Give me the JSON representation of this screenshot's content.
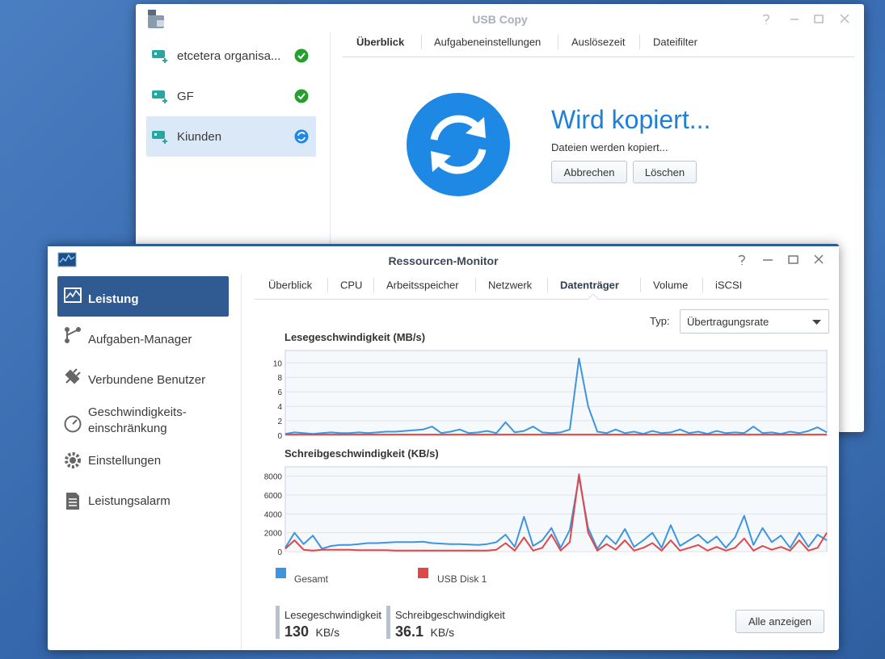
{
  "usb_copy": {
    "title": "USB Copy",
    "tasks": [
      "etcetera organisa...",
      "GF",
      "Kiunden"
    ],
    "tabs": [
      "Überblick",
      "Aufgabeneinstellungen",
      "Auslösezeit",
      "Dateifilter"
    ],
    "status_title": "Wird kopiert...",
    "status_text": "Dateien werden kopiert...",
    "buttons": [
      "Abbrechen",
      "Löschen"
    ]
  },
  "resource_monitor": {
    "title": "Ressourcen-Monitor",
    "sidebar": [
      "Leistung",
      "Aufgaben-Manager",
      "Verbundene Benutzer",
      "Geschwindigkeits-",
      "einschränkung",
      "Einstellungen",
      "Leistungsalarm"
    ],
    "tabs": [
      "Überblick",
      "CPU",
      "Arbeitsspeicher",
      "Netzwerk",
      "Datenträger",
      "Volume",
      "iSCSI"
    ],
    "type_label": "Typ:",
    "type_value": "Übertragungsrate",
    "legend": [
      {
        "name": "Gesamt",
        "color": "#3d95e0"
      },
      {
        "name": "USB Disk 1",
        "color": "#e04848"
      }
    ],
    "charts": [
      {
        "type": "line",
        "title": "Lesegeschwindigkeit (MB/s)",
        "ylim": [
          0,
          11.7
        ],
        "yticks": [
          0,
          2,
          4,
          6,
          8,
          10
        ],
        "grid": true,
        "series": [
          {
            "values": [
              0.2,
              0.4,
              0.3,
              0.2,
              0.3,
              0.4,
              0.3,
              0.3,
              0.4,
              0.3,
              0.4,
              0.5,
              0.5,
              0.6,
              0.7,
              0.8,
              1.2,
              0.3,
              0.5,
              0.8,
              0.3,
              0.4,
              0.6,
              0.3,
              1.8,
              0.4,
              0.6,
              1.2,
              0.4,
              0.3,
              0.4,
              0.8,
              10.6,
              4.0,
              0.5,
              0.3,
              0.8,
              0.3,
              0.5,
              0.2,
              0.6,
              0.3,
              0.4,
              0.8,
              0.3,
              0.5,
              0.2,
              0.6,
              0.3,
              0.4,
              0.3,
              1.2,
              0.3,
              0.4,
              0.2,
              0.5,
              0.3,
              0.6,
              1.1,
              0.4
            ]
          },
          {
            "values": [
              0.1,
              0.1,
              0.1,
              0.1,
              0.1,
              0.1,
              0.1,
              0.1,
              0.1,
              0.1,
              0.1,
              0.1,
              0.1,
              0.1,
              0.1,
              0.1,
              0.1,
              0.1,
              0.1,
              0.1,
              0.1,
              0.1,
              0.1,
              0.1,
              0.1,
              0.1,
              0.1,
              0.1,
              0.1,
              0.1,
              0.1,
              0.1,
              0.1,
              0.1,
              0.1,
              0.1,
              0.1,
              0.1,
              0.1,
              0.1,
              0.1,
              0.1,
              0.1,
              0.1,
              0.1,
              0.1,
              0.1,
              0.1,
              0.1,
              0.1,
              0.1,
              0.1,
              0.1,
              0.1,
              0.1,
              0.1,
              0.1,
              0.1,
              0.1,
              0.1
            ]
          }
        ]
      },
      {
        "type": "line",
        "title": "Schreibgeschwindigkeit (KB/s)",
        "ylim": [
          0,
          9000
        ],
        "yticks": [
          0,
          2000,
          4000,
          6000,
          8000
        ],
        "grid": true,
        "series": [
          {
            "values": [
              400,
              2000,
              800,
              1700,
              300,
              600,
              700,
              700,
              800,
              900,
              900,
              950,
              1000,
              1000,
              1000,
              1050,
              900,
              850,
              800,
              800,
              750,
              700,
              800,
              1000,
              1800,
              500,
              3700,
              600,
              1200,
              2500,
              400,
              2300,
              7900,
              2500,
              300,
              1700,
              800,
              2400,
              500,
              1200,
              2000,
              400,
              2800,
              600,
              1200,
              1800,
              900,
              1600,
              400,
              1500,
              3800,
              700,
              2500,
              1000,
              1700,
              400,
              2000,
              500,
              1800,
              1200
            ]
          },
          {
            "values": [
              300,
              1200,
              200,
              100,
              200,
              200,
              200,
              200,
              150,
              150,
              150,
              150,
              100,
              100,
              100,
              100,
              100,
              100,
              100,
              100,
              100,
              100,
              100,
              200,
              900,
              100,
              1500,
              100,
              400,
              1800,
              100,
              1000,
              8200,
              2000,
              100,
              800,
              200,
              1200,
              100,
              400,
              900,
              100,
              1200,
              100,
              400,
              700,
              100,
              500,
              100,
              400,
              1400,
              100,
              600,
              200,
              500,
              100,
              1200,
              100,
              400,
              2000
            ]
          }
        ]
      }
    ],
    "stats": [
      {
        "label": "Lesegeschwindigkeit",
        "value": 130,
        "unit": "KB/s"
      },
      {
        "label": "Schreibgeschwindigkeit",
        "value": 36.1,
        "unit": "KB/s"
      }
    ],
    "button": "Alle anzeigen"
  }
}
